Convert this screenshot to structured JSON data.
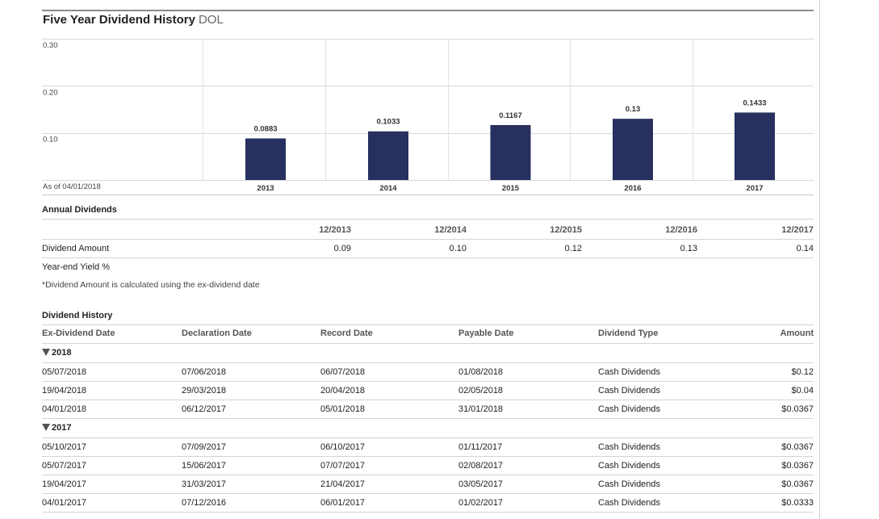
{
  "title": "Five Year Dividend History",
  "ticker": "DOL",
  "chart_data": {
    "type": "bar",
    "categories": [
      "2013",
      "2014",
      "2015",
      "2016",
      "2017"
    ],
    "values": [
      0.0883,
      0.1033,
      0.1167,
      0.13,
      0.1433
    ],
    "value_labels": [
      "0.0883",
      "0.1033",
      "0.1167",
      "0.13",
      "0.1433"
    ],
    "yticks": [
      "0.30",
      "0.20",
      "0.10"
    ],
    "ylim": [
      0,
      0.3
    ],
    "as_of": "As of 04/01/2018",
    "bar_color": "#27305e",
    "grid": true
  },
  "annual": {
    "heading": "Annual Dividends",
    "columns": [
      "12/2013",
      "12/2014",
      "12/2015",
      "12/2016",
      "12/2017"
    ],
    "amount_label": "Dividend Amount",
    "amounts": [
      "0.09",
      "0.10",
      "0.12",
      "0.13",
      "0.14"
    ],
    "yield_label": "Year-end Yield %",
    "note": "*Dividend Amount is calculated using the ex-dividend date"
  },
  "history": {
    "heading": "Dividend History",
    "columns": [
      "Ex-Dividend Date",
      "Declaration Date",
      "Record Date",
      "Payable Date",
      "Dividend Type",
      "Amount"
    ],
    "groups": [
      {
        "year": "2018",
        "rows": [
          [
            "05/07/2018",
            "07/06/2018",
            "06/07/2018",
            "01/08/2018",
            "Cash Dividends",
            "$0.12"
          ],
          [
            "19/04/2018",
            "29/03/2018",
            "20/04/2018",
            "02/05/2018",
            "Cash Dividends",
            "$0.04"
          ],
          [
            "04/01/2018",
            "06/12/2017",
            "05/01/2018",
            "31/01/2018",
            "Cash Dividends",
            "$0.0367"
          ]
        ]
      },
      {
        "year": "2017",
        "rows": [
          [
            "05/10/2017",
            "07/09/2017",
            "06/10/2017",
            "01/11/2017",
            "Cash Dividends",
            "$0.0367"
          ],
          [
            "05/07/2017",
            "15/06/2017",
            "07/07/2017",
            "02/08/2017",
            "Cash Dividends",
            "$0.0367"
          ],
          [
            "19/04/2017",
            "31/03/2017",
            "21/04/2017",
            "03/05/2017",
            "Cash Dividends",
            "$0.0367"
          ],
          [
            "04/01/2017",
            "07/12/2016",
            "06/01/2017",
            "01/02/2017",
            "Cash Dividends",
            "$0.0333"
          ]
        ]
      }
    ]
  }
}
